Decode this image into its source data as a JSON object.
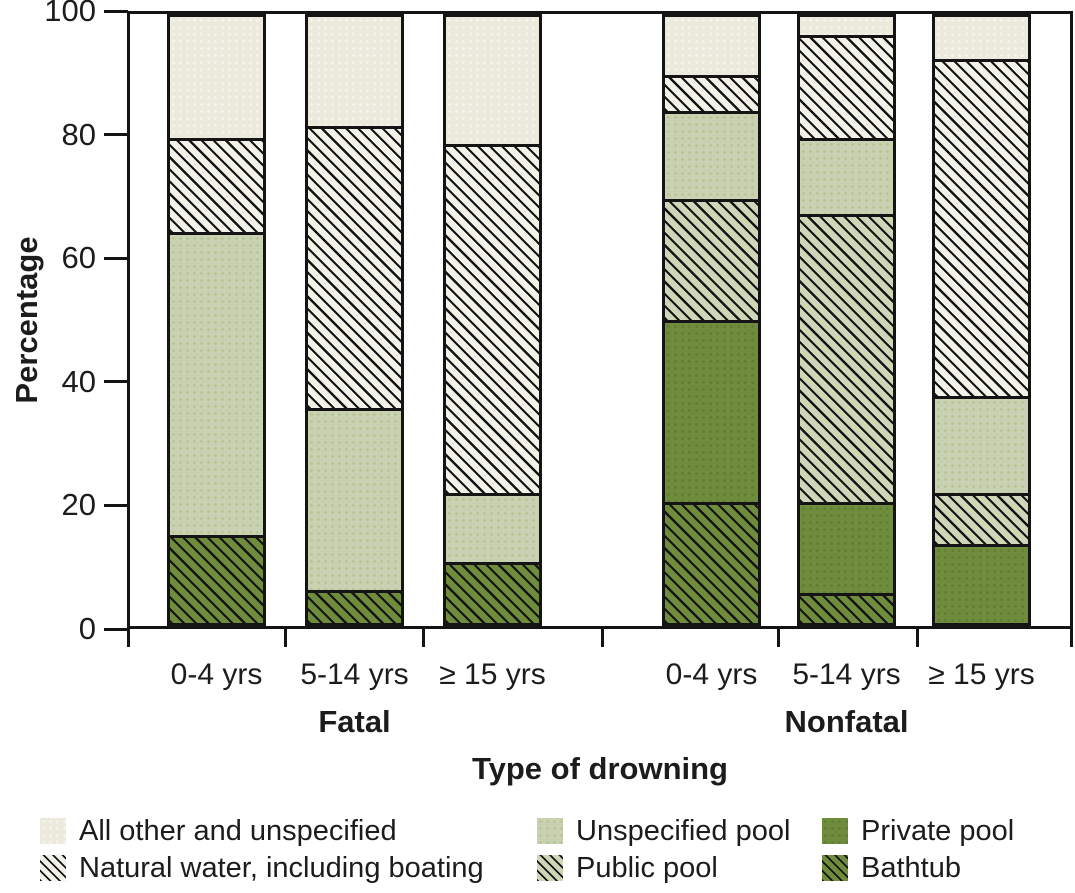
{
  "chart_data": {
    "type": "bar",
    "stacked": true,
    "title": "",
    "ylabel": "Percentage",
    "xlabel": "Type of drowning",
    "ylim": [
      0,
      100
    ],
    "y_ticks": [
      0,
      20,
      40,
      60,
      80,
      100
    ],
    "grid": false,
    "groups": [
      {
        "label": "Fatal",
        "ages": [
          "0-4 yrs",
          "5-14 yrs",
          "≥ 15 yrs"
        ]
      },
      {
        "label": "Nonfatal",
        "ages": [
          "0-4 yrs",
          "5-14 yrs",
          "≥ 15 yrs"
        ]
      }
    ],
    "categories": [
      "Fatal 0-4 yrs",
      "Fatal 5-14 yrs",
      "Fatal ≥ 15 yrs",
      "Nonfatal 0-4 yrs",
      "Nonfatal 5-14 yrs",
      "Nonfatal ≥ 15 yrs"
    ],
    "series": [
      {
        "key": "bathtub",
        "name": "Bathtub",
        "pattern": "hatch",
        "base": "#6e8c3b",
        "values": [
          14.5,
          5.5,
          10,
          20,
          5,
          0
        ]
      },
      {
        "key": "private_pool",
        "name": "Private pool",
        "pattern": "dots",
        "base": "#6e8c3b",
        "dot": "#607d32",
        "values": [
          0,
          0,
          0,
          30,
          15,
          13
        ]
      },
      {
        "key": "public_pool",
        "name": "Public pool",
        "pattern": "hatch",
        "base": "#cdd6b7",
        "values": [
          0,
          0,
          0,
          20,
          47.5,
          8.5
        ]
      },
      {
        "key": "unspecified_pool",
        "name": "Unspecified pool",
        "pattern": "dots",
        "base": "#c8d1b1",
        "dot": "#b9c492",
        "values": [
          50,
          30,
          11.5,
          14.5,
          12.5,
          16
        ]
      },
      {
        "key": "natural_water",
        "name": "Natural water, including boating",
        "pattern": "hatch",
        "base": "#f3f2e9",
        "values": [
          15.5,
          46.5,
          57.5,
          6,
          17,
          55.5
        ]
      },
      {
        "key": "all_other",
        "name": "All other and unspecified",
        "pattern": "dots",
        "base": "#ebeadc",
        "dot": "#f6f5ec",
        "values": [
          20,
          18,
          21,
          9.5,
          3,
          7
        ]
      }
    ],
    "hatch_line_color": "#141414",
    "outline_color": "#141414"
  },
  "legend": {
    "rows": [
      [
        "all_other",
        "unspecified_pool",
        "private_pool"
      ],
      [
        "natural_water",
        "public_pool",
        "bathtub"
      ]
    ]
  }
}
